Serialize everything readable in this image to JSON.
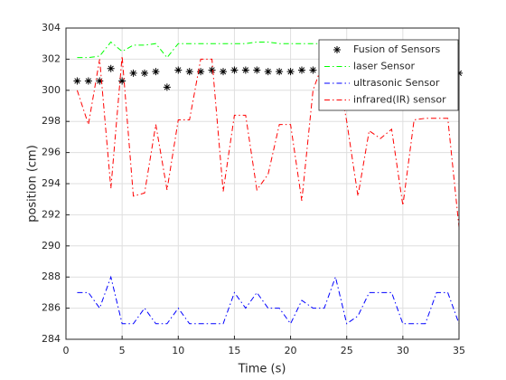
{
  "chart_data": {
    "type": "line",
    "xlabel": "Time (s)",
    "ylabel": "position (cm)",
    "x": [
      1,
      2,
      3,
      4,
      5,
      6,
      7,
      8,
      9,
      10,
      11,
      12,
      13,
      14,
      15,
      16,
      17,
      18,
      19,
      20,
      21,
      22,
      23,
      24,
      25,
      26,
      27,
      28,
      29,
      30,
      31,
      32,
      33,
      34,
      35
    ],
    "series": [
      {
        "name": "Fusion of Sensors",
        "color": "#000000",
        "style": "marker",
        "values": [
          300.6,
          300.6,
          300.6,
          301.4,
          300.6,
          301.1,
          301.1,
          301.2,
          300.2,
          301.3,
          301.2,
          301.2,
          301.3,
          301.2,
          301.3,
          301.3,
          301.3,
          301.2,
          301.2,
          301.2,
          301.3,
          301.3,
          301.3,
          301.3,
          301.3,
          301.2,
          301.3,
          301.3,
          301.3,
          301.2,
          301.3,
          301.3,
          301.3,
          301.3,
          301.1
        ]
      },
      {
        "name": "laser Sensor",
        "color": "#00ff00",
        "style": "dashdot",
        "values": [
          302.1,
          302.1,
          302.2,
          303.1,
          302.5,
          302.9,
          302.9,
          303.0,
          302.1,
          303.0,
          303.0,
          303.0,
          303.0,
          303.0,
          303.0,
          303.0,
          303.1,
          303.1,
          303.0,
          303.0,
          303.0,
          303.0,
          303.0,
          303.0,
          303.0,
          303.0,
          303.0,
          303.0,
          303.0,
          303.0,
          303.0,
          303.0,
          303.0,
          303.0,
          303.0
        ]
      },
      {
        "name": "ultrasonic Sensor",
        "color": "#0000ff",
        "style": "dashdot",
        "values": [
          287,
          287,
          286,
          288,
          285,
          285,
          286,
          285,
          285,
          286,
          285,
          285,
          285,
          285,
          287,
          286,
          287,
          286,
          286,
          285,
          286.5,
          286,
          286,
          288,
          285,
          285.5,
          287,
          287,
          287,
          285,
          285,
          285,
          287,
          287,
          285
        ]
      },
      {
        "name": "infrared(IR) sensor",
        "color": "#ff0000",
        "style": "dashdot",
        "values": [
          300,
          297.8,
          302,
          293.7,
          302.2,
          293.2,
          293.4,
          297.8,
          293.6,
          298.1,
          298.1,
          302,
          302,
          293.5,
          298.4,
          298.4,
          293.6,
          294.6,
          297.8,
          297.8,
          292.9,
          300,
          302,
          302,
          298,
          293.2,
          297.4,
          296.9,
          297.5,
          292.6,
          298.1,
          298.2,
          298.2,
          298.2,
          291.2
        ]
      }
    ],
    "xlim": [
      0,
      35
    ],
    "xticks": [
      0,
      5,
      10,
      15,
      20,
      25,
      30,
      35
    ],
    "ylim": [
      284,
      304
    ],
    "yticks": [
      284,
      286,
      288,
      290,
      292,
      294,
      296,
      298,
      300,
      302,
      304
    ],
    "grid": true,
    "legend": "northeast"
  }
}
